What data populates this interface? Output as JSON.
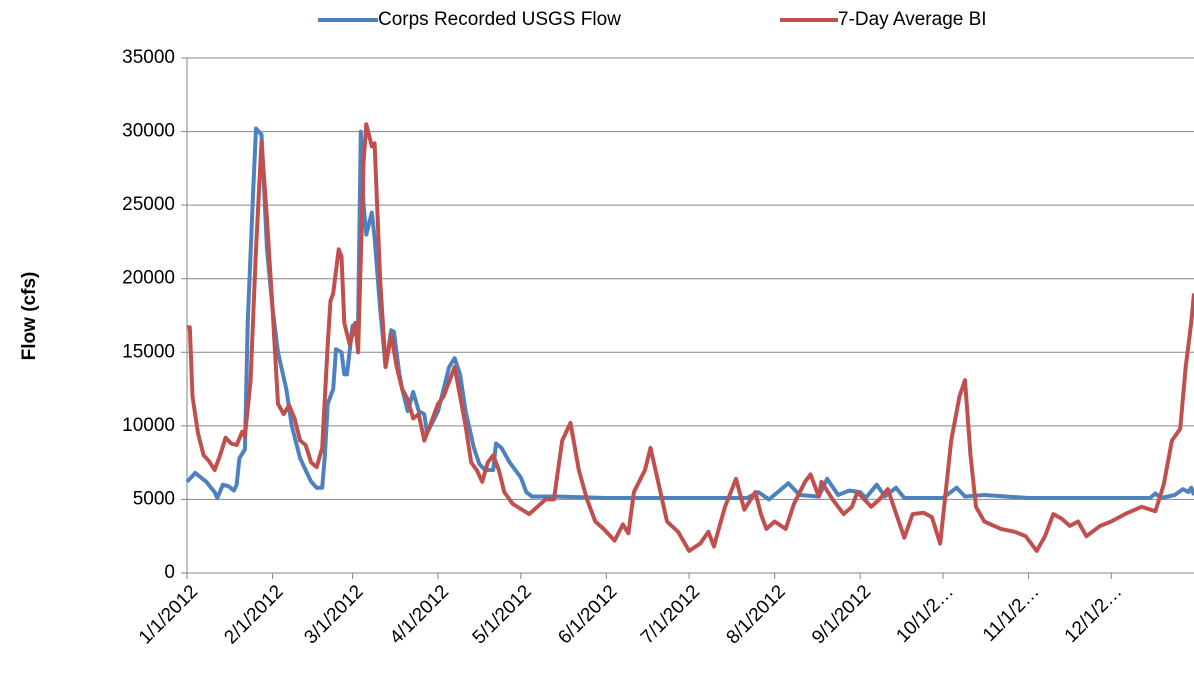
{
  "chart_data": {
    "type": "line",
    "y_label": "Flow (cfs)",
    "legend": "top",
    "grid": true,
    "xlim": [
      "1/1/2012",
      "12/31/2012"
    ],
    "xticks": [
      "1/1/2012",
      "2/1/2012",
      "3/1/2012",
      "4/1/2012",
      "5/1/2012",
      "6/1/2012",
      "7/1/2012",
      "8/1/2012",
      "9/1/2012",
      {
        "value": "10/1/2012",
        "label": "10/1/2…"
      },
      {
        "value": "11/1/2012",
        "label": "11/1/2…"
      },
      {
        "value": "12/1/2012",
        "label": "12/1/2…"
      }
    ],
    "ylim": [
      0,
      35000
    ],
    "yticks": [
      0,
      5000,
      10000,
      15000,
      20000,
      25000,
      30000,
      35000
    ],
    "series": [
      {
        "name": "Corps Recorded USGS Flow",
        "color": "#4f81bd",
        "x": [
          "1/1/2012",
          "1/4/2012",
          "1/8/2012",
          "1/11/2012",
          "1/12/2012",
          "1/14/2012",
          "1/16/2012",
          "1/18/2012",
          "1/19/2012",
          "1/20/2012",
          "1/22/2012",
          "1/23/2012",
          "1/25/2012",
          "1/26/2012",
          "1/28/2012",
          "1/30/2012",
          "2/1/2012",
          "2/3/2012",
          "2/6/2012",
          "2/8/2012",
          "2/11/2012",
          "2/13/2012",
          "2/15/2012",
          "2/17/2012",
          "2/19/2012",
          "2/20/2012",
          "2/21/2012",
          "2/23/2012",
          "2/24/2012",
          "2/26/2012",
          "2/27/2012",
          "2/28/2012",
          "3/1/2012",
          "3/3/2012",
          "3/4/2012",
          "3/5/2012",
          "3/6/2012",
          "3/8/2012",
          "3/9/2012",
          "3/11/2012",
          "3/13/2012",
          "3/15/2012",
          "3/16/2012",
          "3/18/2012",
          "3/19/2012",
          "3/21/2012",
          "3/23/2012",
          "3/25/2012",
          "3/27/2012",
          "3/28/2012",
          "4/1/2012",
          "4/3/2012",
          "4/5/2012",
          "4/7/2012",
          "4/9/2012",
          "4/11/2012",
          "4/14/2012",
          "4/16/2012",
          "4/18/2012",
          "4/21/2012",
          "4/22/2012",
          "4/24/2012",
          "4/27/2012",
          "5/1/2012",
          "5/3/2012",
          "5/5/2012",
          "5/14/2012",
          "6/1/2012",
          "6/16/2012",
          "7/1/2012",
          "7/22/2012",
          "7/26/2012",
          "7/30/2012",
          "8/6/2012",
          "8/10/2012",
          "8/17/2012",
          "8/20/2012",
          "8/24/2012",
          "8/28/2012",
          "9/1/2012",
          "9/3/2012",
          "9/7/2012",
          "9/10/2012",
          "9/14/2012",
          "9/17/2012",
          "10/1/2012",
          "10/6/2012",
          "10/9/2012",
          "10/16/2012",
          "11/1/2012",
          "11/20/2012",
          "12/1/2012",
          "12/15/2012",
          "12/17/2012",
          "12/19/2012",
          "12/24/2012",
          "12/27/2012",
          "12/29/2012",
          "12/30/2012",
          "12/31/2012"
        ],
        "values": [
          6200,
          6800,
          6200,
          5500,
          5100,
          6000,
          5900,
          5600,
          6000,
          7800,
          8400,
          17000,
          26000,
          30200,
          29800,
          22000,
          18000,
          15000,
          12500,
          10000,
          7800,
          7000,
          6200,
          5800,
          5800,
          8000,
          11500,
          12500,
          15200,
          15000,
          13500,
          13500,
          16800,
          17000,
          30000,
          25000,
          23000,
          24500,
          22800,
          18000,
          14000,
          16500,
          16400,
          13500,
          12500,
          11000,
          12300,
          11000,
          10800,
          9500,
          11000,
          12500,
          14000,
          14600,
          13500,
          11000,
          8500,
          7400,
          7000,
          7000,
          8800,
          8500,
          7500,
          6500,
          5500,
          5200,
          5200,
          5100,
          5100,
          5100,
          5100,
          5500,
          5000,
          6100,
          5300,
          5200,
          6400,
          5300,
          5600,
          5500,
          5100,
          6000,
          5200,
          5800,
          5100,
          5100,
          5800,
          5200,
          5300,
          5100,
          5100,
          5100,
          5100,
          5400,
          5100,
          5300,
          5700,
          5500,
          5800,
          5300
        ]
      },
      {
        "name": "7-Day Average BI",
        "color": "#c0504d",
        "x": [
          "1/1/2012",
          "1/2/2012",
          "1/3/2012",
          "1/5/2012",
          "1/7/2012",
          "1/9/2012",
          "1/11/2012",
          "1/13/2012",
          "1/15/2012",
          "1/17/2012",
          "1/19/2012",
          "1/21/2012",
          "1/22/2012",
          "1/24/2012",
          "1/26/2012",
          "1/28/2012",
          "1/30/2012",
          "2/1/2012",
          "2/3/2012",
          "2/5/2012",
          "2/7/2012",
          "2/9/2012",
          "2/11/2012",
          "2/13/2012",
          "2/15/2012",
          "2/17/2012",
          "2/19/2012",
          "2/21/2012",
          "2/22/2012",
          "2/23/2012",
          "2/25/2012",
          "2/26/2012",
          "2/27/2012",
          "2/29/2012",
          "3/2/2012",
          "3/3/2012",
          "3/5/2012",
          "3/6/2012",
          "3/8/2012",
          "3/9/2012",
          "3/11/2012",
          "3/13/2012",
          "3/15/2012",
          "3/17/2012",
          "3/19/2012",
          "3/21/2012",
          "3/23/2012",
          "3/25/2012",
          "3/27/2012",
          "3/29/2012",
          "4/1/2012",
          "4/3/2012",
          "4/7/2012",
          "4/9/2012",
          "4/11/2012",
          "4/13/2012",
          "4/15/2012",
          "4/17/2012",
          "4/19/2012",
          "4/21/2012",
          "4/23/2012",
          "4/25/2012",
          "4/28/2012",
          "5/4/2012",
          "5/10/2012",
          "5/13/2012",
          "5/16/2012",
          "5/19/2012",
          "5/22/2012",
          "5/25/2012",
          "5/28/2012",
          "5/31/2012",
          "6/4/2012",
          "6/7/2012",
          "6/9/2012",
          "6/11/2012",
          "6/15/2012",
          "6/17/2012",
          "6/20/2012",
          "6/23/2012",
          "6/27/2012",
          "7/1/2012",
          "7/5/2012",
          "7/8/2012",
          "7/10/2012",
          "7/11/2012",
          "7/14/2012",
          "7/18/2012",
          "7/21/2012",
          "7/25/2012",
          "7/27/2012",
          "7/29/2012",
          "8/1/2012",
          "8/5/2012",
          "8/8/2012",
          "8/12/2012",
          "8/14/2012",
          "8/17/2012",
          "8/18/2012",
          "8/22/2012",
          "8/26/2012",
          "8/29/2012",
          "8/31/2012",
          "9/5/2012",
          "9/8/2012",
          "9/11/2012",
          "9/15/2012",
          "9/17/2012",
          "9/20/2012",
          "9/24/2012",
          "9/27/2012",
          "9/30/2012",
          "10/4/2012",
          "10/7/2012",
          "10/9/2012",
          "10/11/2012",
          "10/13/2012",
          "10/16/2012",
          "10/22/2012",
          "10/27/2012",
          "10/31/2012",
          "11/4/2012",
          "11/7/2012",
          "11/10/2012",
          "11/13/2012",
          "11/16/2012",
          "11/19/2012",
          "11/22/2012",
          "11/27/2012",
          "12/1/2012",
          "12/6/2012",
          "12/12/2012",
          "12/17/2012",
          "12/20/2012",
          "12/23/2012",
          "12/26/2012",
          "12/28/2012",
          "12/30/2012",
          "12/31/2012"
        ],
        "values": [
          16700,
          16700,
          12000,
          9500,
          8000,
          7600,
          7000,
          8000,
          9200,
          8800,
          8700,
          9600,
          9300,
          13000,
          22000,
          29300,
          24000,
          18000,
          11500,
          10800,
          11400,
          10500,
          9000,
          8700,
          7500,
          7200,
          8500,
          15500,
          18500,
          19000,
          22000,
          21500,
          17000,
          15500,
          17000,
          15000,
          28000,
          30500,
          29000,
          29200,
          20000,
          14000,
          16200,
          14000,
          12500,
          11800,
          10500,
          10800,
          9000,
          10000,
          11500,
          12000,
          14000,
          12000,
          10000,
          7500,
          7000,
          6200,
          7500,
          8000,
          7000,
          5500,
          4700,
          4000,
          5000,
          5000,
          9000,
          10200,
          7000,
          5000,
          3500,
          3000,
          2200,
          3300,
          2700,
          5500,
          7000,
          8500,
          6000,
          3500,
          2800,
          1500,
          2000,
          2800,
          1800,
          2500,
          4500,
          6400,
          4300,
          5500,
          4000,
          3000,
          3500,
          3000,
          4700,
          6200,
          6700,
          5200,
          6200,
          5000,
          4000,
          4500,
          5500,
          4500,
          5000,
          5700,
          3500,
          2400,
          4000,
          4100,
          3800,
          2000,
          9000,
          12000,
          13100,
          8000,
          4500,
          3500,
          3000,
          2800,
          2500,
          1500,
          2500,
          4000,
          3700,
          3200,
          3500,
          2500,
          3200,
          3500,
          4000,
          4500,
          4200,
          6000,
          9000,
          9800,
          14000,
          17000,
          19000
        ]
      }
    ]
  }
}
